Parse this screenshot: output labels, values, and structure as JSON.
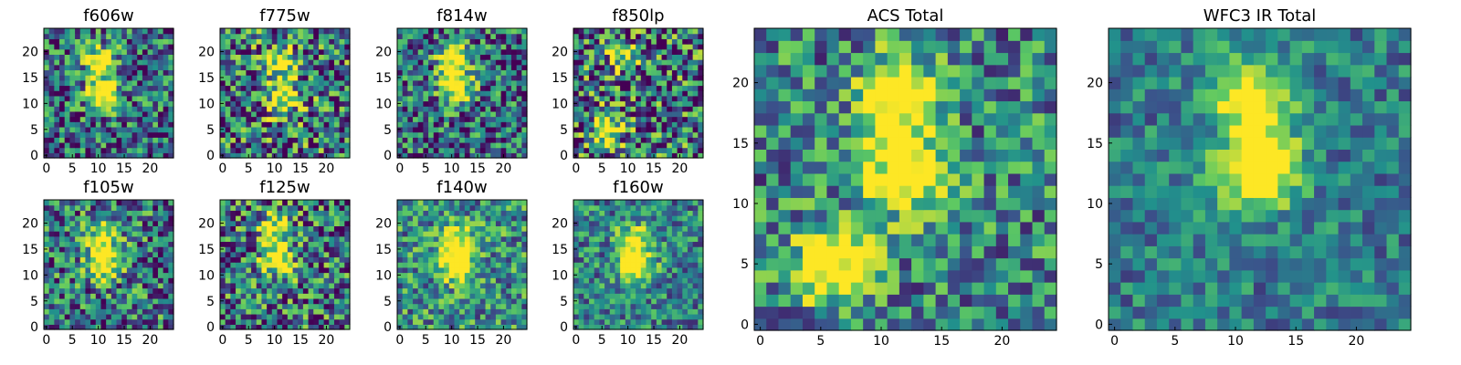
{
  "figure": {
    "colormap": "viridis",
    "colormap_stops": [
      "#440154",
      "#3b528b",
      "#21918c",
      "#5ec962",
      "#fde725"
    ]
  },
  "chart_data": [
    {
      "type": "heatmap",
      "title": "f606w",
      "source_on_row": 11,
      "grid": [
        25,
        25
      ],
      "xlim": [
        0,
        24
      ],
      "ylim": [
        0,
        24
      ],
      "xticks": [
        "0",
        "5",
        "10",
        "15",
        "20"
      ],
      "yticks": [
        "0",
        "5",
        "10",
        "15",
        "20"
      ],
      "sources": [
        {
          "x": 11,
          "y": 11.5,
          "peak": 0.9
        },
        {
          "x": 10.5,
          "y": 18,
          "peak": 0.85
        }
      ],
      "noise_level": 0.55,
      "background": 0.35,
      "seed": 11
    },
    {
      "type": "heatmap",
      "title": "f775w",
      "grid": [
        25,
        25
      ],
      "xlim": [
        0,
        24
      ],
      "ylim": [
        0,
        24
      ],
      "xticks": [
        "0",
        "5",
        "10",
        "15",
        "20"
      ],
      "yticks": [
        "0",
        "5",
        "10",
        "15",
        "20"
      ],
      "sources": [
        {
          "x": 11.5,
          "y": 11,
          "peak": 0.75
        },
        {
          "x": 11,
          "y": 18,
          "peak": 0.7
        }
      ],
      "noise_level": 0.65,
      "background": 0.4,
      "seed": 23
    },
    {
      "type": "heatmap",
      "title": "f814w",
      "grid": [
        25,
        25
      ],
      "xlim": [
        0,
        24
      ],
      "ylim": [
        0,
        24
      ],
      "xticks": [
        "0",
        "5",
        "10",
        "15",
        "20"
      ],
      "yticks": [
        "0",
        "5",
        "10",
        "15",
        "20"
      ],
      "sources": [
        {
          "x": 10.5,
          "y": 19,
          "peak": 0.95
        },
        {
          "x": 11,
          "y": 13,
          "peak": 0.8
        }
      ],
      "noise_level": 0.55,
      "background": 0.35,
      "seed": 37
    },
    {
      "type": "heatmap",
      "title": "f850lp",
      "grid": [
        25,
        25
      ],
      "xlim": [
        0,
        24
      ],
      "ylim": [
        0,
        24
      ],
      "xticks": [
        "0",
        "5",
        "10",
        "15",
        "20"
      ],
      "yticks": [
        "0",
        "5",
        "10",
        "15",
        "20"
      ],
      "sources": [
        {
          "x": 6,
          "y": 5,
          "peak": 0.9
        },
        {
          "x": 9,
          "y": 19,
          "peak": 0.55
        }
      ],
      "noise_level": 0.7,
      "background": 0.35,
      "seed": 41
    },
    {
      "type": "heatmap",
      "title": "f105w",
      "grid": [
        25,
        25
      ],
      "xlim": [
        0,
        24
      ],
      "ylim": [
        0,
        24
      ],
      "xticks": [
        "0",
        "5",
        "10",
        "15",
        "20"
      ],
      "yticks": [
        "0",
        "5",
        "10",
        "15",
        "20"
      ],
      "sources": [
        {
          "x": 11,
          "y": 12,
          "peak": 0.85
        },
        {
          "x": 11,
          "y": 18,
          "peak": 0.7
        }
      ],
      "noise_level": 0.55,
      "background": 0.4,
      "seed": 53
    },
    {
      "type": "heatmap",
      "title": "f125w",
      "grid": [
        25,
        25
      ],
      "xlim": [
        0,
        24
      ],
      "ylim": [
        0,
        24
      ],
      "xticks": [
        "0",
        "5",
        "10",
        "15",
        "20"
      ],
      "yticks": [
        "0",
        "5",
        "10",
        "15",
        "20"
      ],
      "sources": [
        {
          "x": 10.5,
          "y": 13,
          "peak": 0.8
        },
        {
          "x": 10,
          "y": 19,
          "peak": 0.6
        }
      ],
      "noise_level": 0.6,
      "background": 0.4,
      "seed": 67
    },
    {
      "type": "heatmap",
      "title": "f140w",
      "grid": [
        25,
        25
      ],
      "xlim": [
        0,
        24
      ],
      "ylim": [
        0,
        24
      ],
      "xticks": [
        "0",
        "5",
        "10",
        "15",
        "20"
      ],
      "yticks": [
        "0",
        "5",
        "10",
        "15",
        "20"
      ],
      "sources": [
        {
          "x": 11,
          "y": 12,
          "peak": 0.9
        },
        {
          "x": 11,
          "y": 17,
          "peak": 0.6
        }
      ],
      "noise_level": 0.45,
      "background": 0.5,
      "seed": 71
    },
    {
      "type": "heatmap",
      "title": "f160w",
      "grid": [
        25,
        25
      ],
      "xlim": [
        0,
        24
      ],
      "ylim": [
        0,
        24
      ],
      "xticks": [
        "0",
        "5",
        "10",
        "15",
        "20"
      ],
      "yticks": [
        "0",
        "5",
        "10",
        "15",
        "20"
      ],
      "sources": [
        {
          "x": 11.5,
          "y": 12,
          "peak": 0.9
        },
        {
          "x": 11,
          "y": 17,
          "peak": 0.5
        }
      ],
      "noise_level": 0.4,
      "background": 0.45,
      "seed": 83
    },
    {
      "type": "heatmap",
      "title": "ACS Total",
      "grid": [
        25,
        25
      ],
      "xlim": [
        0,
        24
      ],
      "ylim": [
        0,
        24
      ],
      "xticks": [
        "0",
        "5",
        "10",
        "15",
        "20"
      ],
      "yticks": [
        "0",
        "5",
        "10",
        "15",
        "20"
      ],
      "sources": [
        {
          "x": 11.5,
          "y": 19,
          "peak": 0.95
        },
        {
          "x": 12,
          "y": 12.5,
          "peak": 0.9
        },
        {
          "x": 6,
          "y": 5,
          "peak": 0.85
        }
      ],
      "noise_level": 0.45,
      "background": 0.45,
      "seed": 97
    },
    {
      "type": "heatmap",
      "title": "WFC3 IR Total",
      "grid": [
        25,
        25
      ],
      "xlim": [
        0,
        24
      ],
      "ylim": [
        0,
        24
      ],
      "xticks": [
        "0",
        "5",
        "10",
        "15",
        "20"
      ],
      "yticks": [
        "0",
        "5",
        "10",
        "15",
        "20"
      ],
      "sources": [
        {
          "x": 12,
          "y": 13,
          "peak": 1.0
        },
        {
          "x": 11.5,
          "y": 19,
          "peak": 0.7
        }
      ],
      "noise_level": 0.3,
      "background": 0.42,
      "seed": 101
    }
  ]
}
